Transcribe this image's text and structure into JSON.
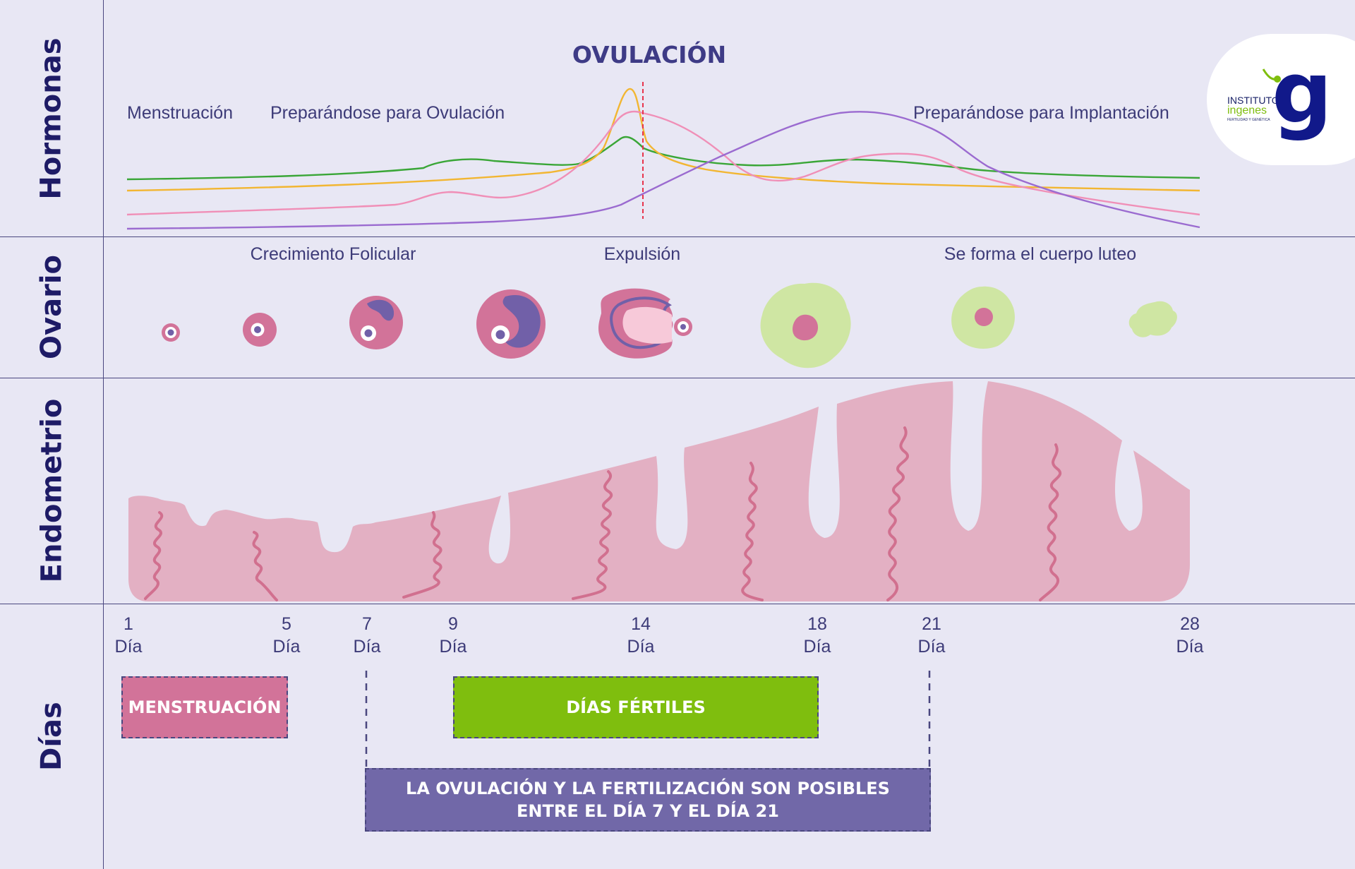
{
  "rows": {
    "hormones": "Hormonas",
    "ovary": "Ovario",
    "endometrium": "Endometrio",
    "days": "Días"
  },
  "hormones": {
    "title": "OVULACIÓN",
    "phase_menstruation": "Menstruación",
    "phase_preparing_ovulation": "Preparándose para Ovulación",
    "phase_preparing_implantation": "Preparándose para Implantación",
    "line_colors": {
      "green": "#3aa637",
      "yellow": "#f2b632",
      "pink": "#f08fb7",
      "purple": "#9b6bd0",
      "ovulation_marker": "#e8344c"
    }
  },
  "ovary": {
    "label_follicular": "Crecimiento Folicular",
    "label_expulsion": "Expulsión",
    "label_luteum": "Se forma el cuerpo luteo",
    "colors": {
      "follicle": "#d27399",
      "oocyte": "#7160a8",
      "corpus_luteum": "#cfe6a3"
    }
  },
  "logo": {
    "line1": "INSTITUTO",
    "line2": "ingenes",
    "line3": "FERTILIDAD Y GENÉTICA",
    "mark": "g"
  },
  "days": [
    {
      "num": "1",
      "word": "Día"
    },
    {
      "num": "5",
      "word": "Día"
    },
    {
      "num": "7",
      "word": "Día"
    },
    {
      "num": "9",
      "word": "Día"
    },
    {
      "num": "14",
      "word": "Día"
    },
    {
      "num": "18",
      "word": "Día"
    },
    {
      "num": "21",
      "word": "Día"
    },
    {
      "num": "28",
      "word": "Día"
    }
  ],
  "boxes": {
    "menstruation": "MENSTRUACIÓN",
    "fertile": "DÍAS FÉRTILES",
    "ovulation_line1": "LA OVULACIÓN Y LA FERTILIZACIÓN SON POSIBLES",
    "ovulation_line2": "ENTRE EL DÍA 7 Y EL DÍA 21"
  },
  "colors": {
    "background": "#e8e7f4",
    "menstruation_box": "#d27399",
    "fertile_box": "#7fbe0e",
    "ovulation_box": "#7168a8",
    "endometrium": "#e3b0c3",
    "vessel": "#d1708f"
  }
}
